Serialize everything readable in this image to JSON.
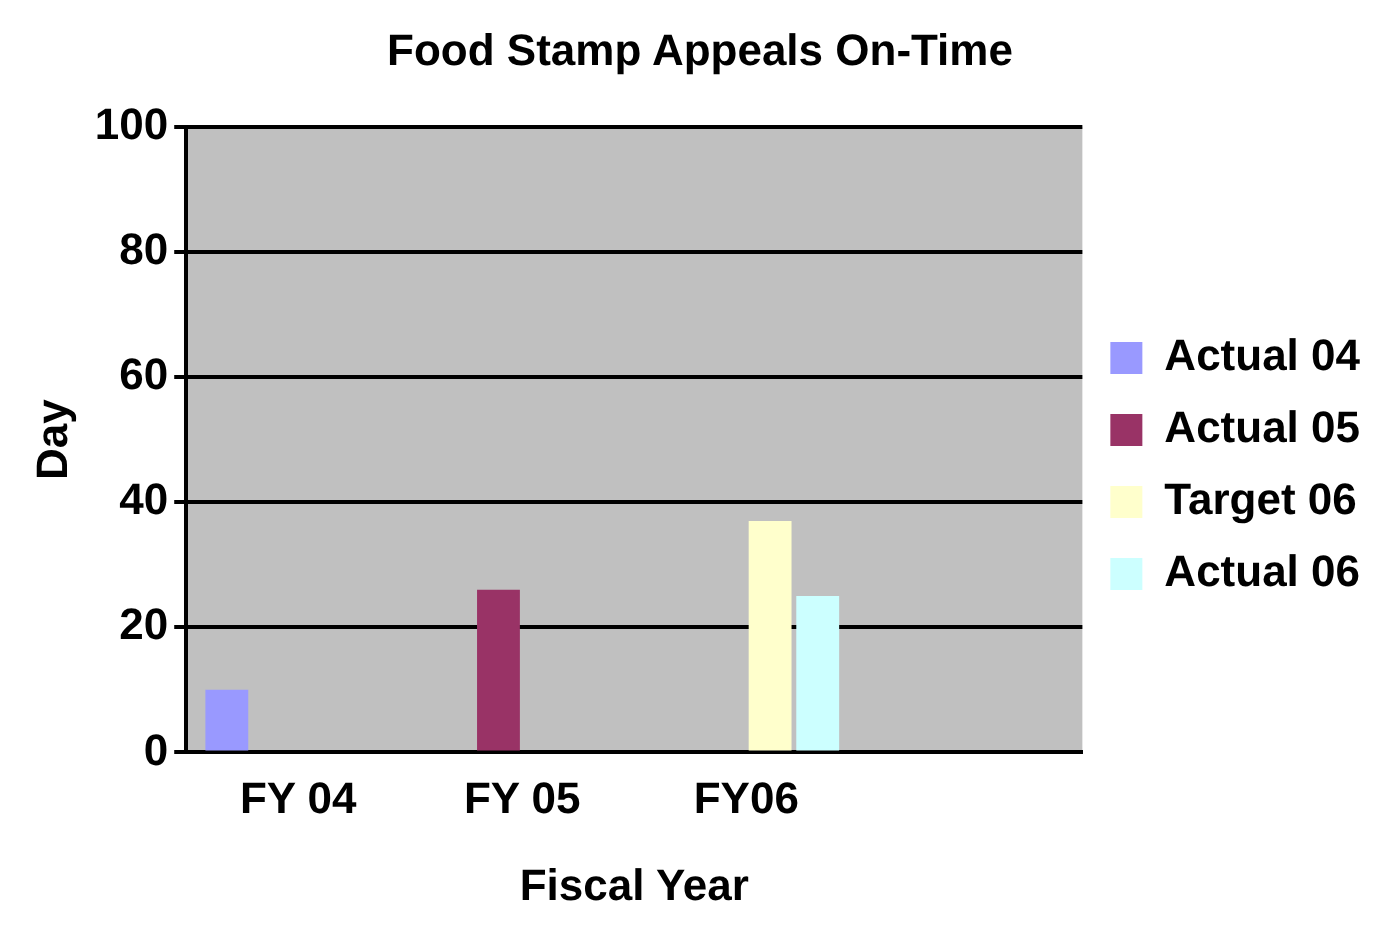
{
  "chart_data": {
    "type": "bar",
    "title": "Food Stamp Appeals On-Time",
    "xlabel": "Fiscal Year",
    "ylabel": "Day",
    "categories": [
      "FY 04",
      "FY 05",
      "FY06",
      null
    ],
    "series": [
      {
        "name": "Actual 04",
        "color": "#9999ff",
        "values": [
          10,
          null,
          null,
          null
        ]
      },
      {
        "name": "Actual 05",
        "color": "#993366",
        "values": [
          null,
          26,
          null,
          null
        ]
      },
      {
        "name": "Target 06",
        "color": "#ffffcc",
        "values": [
          null,
          null,
          37,
          null
        ]
      },
      {
        "name": "Actual 06",
        "color": "#ccffff",
        "values": [
          null,
          null,
          25,
          null
        ]
      }
    ],
    "ylim": [
      0,
      100
    ],
    "yticks": [
      0,
      20,
      40,
      60,
      80,
      100
    ],
    "grid": "y",
    "legend": "right"
  }
}
